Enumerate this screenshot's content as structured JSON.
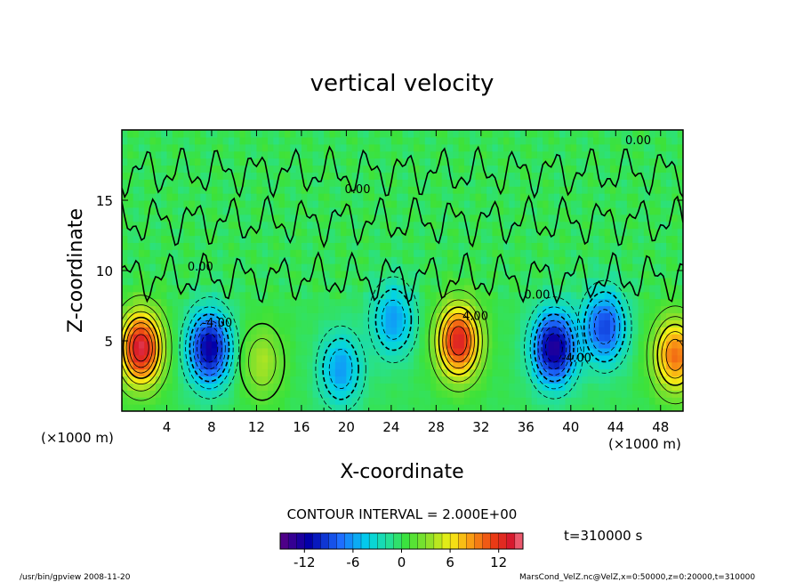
{
  "chart_data": {
    "type": "heatmap",
    "title": "vertical velocity",
    "xlabel": "X-coordinate",
    "ylabel": "Z-coordinate",
    "x_unit": "(×1000 m)",
    "y_unit": "(×1000 m)",
    "xlim": [
      0,
      50
    ],
    "ylim": [
      0,
      20
    ],
    "x_ticks": [
      4,
      8,
      12,
      16,
      20,
      24,
      28,
      32,
      36,
      40,
      44,
      48
    ],
    "y_ticks": [
      5,
      10,
      15
    ],
    "contour_interval_text": "CONTOUR INTERVAL = 2.000E+00",
    "time_text": "t=310000 s",
    "colorbar": {
      "range": [
        -15,
        15
      ],
      "ticks": [
        -12,
        -6,
        0,
        6,
        12
      ]
    },
    "contour_labels": [
      {
        "text": "0.00",
        "x": 46,
        "y": 19
      },
      {
        "text": "0.00",
        "x": 21,
        "y": 15.5
      },
      {
        "text": "0.00",
        "x": 7,
        "y": 10
      },
      {
        "text": "-4.00",
        "x": 8.5,
        "y": 6
      },
      {
        "text": "4.00",
        "x": 31.5,
        "y": 6.5
      },
      {
        "text": "0.00",
        "x": 37,
        "y": 8
      },
      {
        "text": "-4.00",
        "x": 40.5,
        "y": 3.5
      }
    ],
    "features": [
      {
        "kind": "updraft",
        "x": 1.7,
        "z": 4.5,
        "peak": 14
      },
      {
        "kind": "downdraft",
        "x": 7.8,
        "z": 4.5,
        "peak": -12
      },
      {
        "kind": "updraft",
        "x": 12.5,
        "z": 3.5,
        "peak": 4
      },
      {
        "kind": "downdraft",
        "x": 19.5,
        "z": 3.0,
        "peak": -6
      },
      {
        "kind": "downdraft",
        "x": 24.2,
        "z": 6.5,
        "peak": -6
      },
      {
        "kind": "updraft",
        "x": 30.0,
        "z": 5.0,
        "peak": 13
      },
      {
        "kind": "downdraft",
        "x": 38.5,
        "z": 4.5,
        "peak": -13
      },
      {
        "kind": "downdraft",
        "x": 43.0,
        "z": 6.0,
        "peak": -9
      },
      {
        "kind": "updraft",
        "x": 49.3,
        "z": 4.0,
        "peak": 10
      }
    ]
  },
  "footer": {
    "left": "/usr/bin/gpview  2008-11-20",
    "right": "MarsCond_VelZ.nc@VelZ,x=0:50000,z=0:20000,t=310000"
  },
  "colors": {
    "background_field": "#3fe23a",
    "frame": "#000000"
  }
}
